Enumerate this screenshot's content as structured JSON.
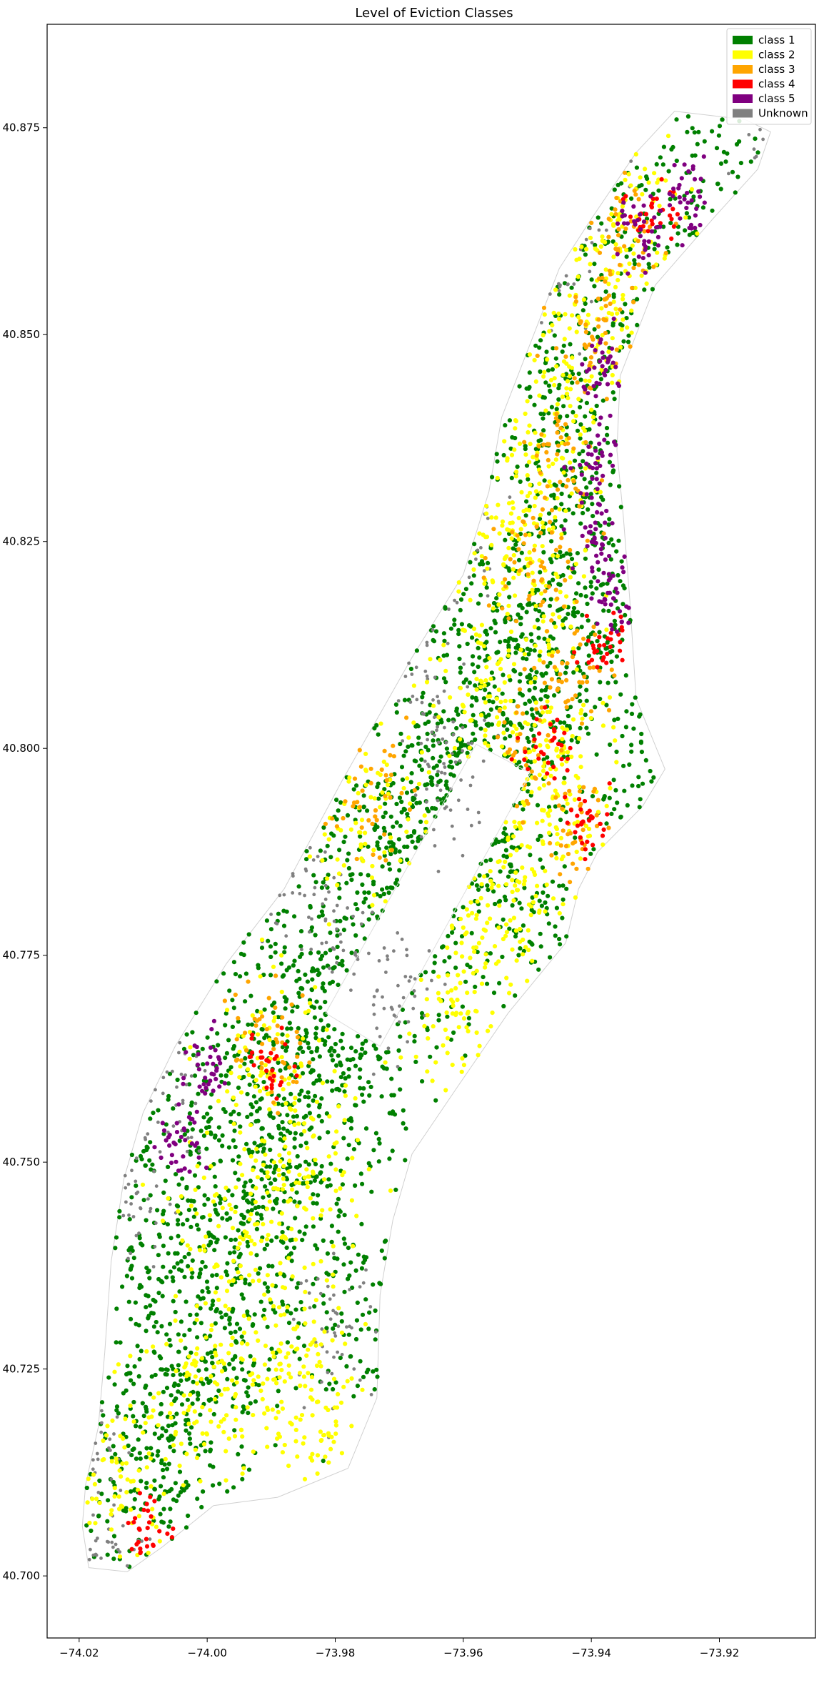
{
  "chart_data": {
    "type": "scatter",
    "title": "Level of Eviction Classes",
    "xlabel": "",
    "ylabel": "",
    "xlim": [
      -74.025,
      -73.905
    ],
    "ylim": [
      40.6925,
      40.8875
    ],
    "x_ticks": [
      -74.02,
      -74.0,
      -73.98,
      -73.96,
      -73.94,
      -73.92
    ],
    "x_tick_labels": [
      "−74.02",
      "−74.00",
      "−73.98",
      "−73.96",
      "−73.94",
      "−73.92"
    ],
    "y_ticks": [
      40.7,
      40.725,
      40.75,
      40.775,
      40.8,
      40.825,
      40.85,
      40.875
    ],
    "y_tick_labels": [
      "40.700",
      "40.725",
      "40.750",
      "40.775",
      "40.800",
      "40.825",
      "40.850",
      "40.875"
    ],
    "grid": false,
    "legend_position": "top-right",
    "legend": [
      {
        "label": "class 1",
        "color": "#008000"
      },
      {
        "label": "class 2",
        "color": "#ffff00"
      },
      {
        "label": "class 3",
        "color": "#ffa500"
      },
      {
        "label": "class 4",
        "color": "#ff0000"
      },
      {
        "label": "class 5",
        "color": "#800080"
      },
      {
        "label": "Unknown",
        "color": "#808080"
      }
    ],
    "series": [
      {
        "name": "class 1",
        "color": "#008000"
      },
      {
        "name": "class 2",
        "color": "#ffff00"
      },
      {
        "name": "class 3",
        "color": "#ffa500"
      },
      {
        "name": "class 4",
        "color": "#ff0000"
      },
      {
        "name": "class 5",
        "color": "#800080"
      },
      {
        "name": "Unknown",
        "color": "#808080"
      }
    ],
    "boundary_outline": {
      "color": "#d0d0d0",
      "points": [
        [
          -74.0185,
          40.701
        ],
        [
          -74.0125,
          40.7005
        ],
        [
          -74.007,
          40.7035
        ],
        [
          -73.999,
          40.7085
        ],
        [
          -73.989,
          40.7095
        ],
        [
          -73.978,
          40.713
        ],
        [
          -73.9735,
          40.7215
        ],
        [
          -73.973,
          40.734
        ],
        [
          -73.971,
          40.743
        ],
        [
          -73.968,
          40.751
        ],
        [
          -73.961,
          40.759
        ],
        [
          -73.953,
          40.768
        ],
        [
          -73.944,
          40.7765
        ],
        [
          -73.942,
          40.783
        ],
        [
          -73.939,
          40.7875
        ],
        [
          -73.932,
          40.793
        ],
        [
          -73.9285,
          40.7975
        ],
        [
          -73.933,
          40.806
        ],
        [
          -73.934,
          40.818
        ],
        [
          -73.935,
          40.828
        ],
        [
          -73.936,
          40.836
        ],
        [
          -73.9355,
          40.845
        ],
        [
          -73.93,
          40.856
        ],
        [
          -73.921,
          40.864
        ],
        [
          -73.914,
          40.87
        ],
        [
          -73.912,
          40.8745
        ],
        [
          -73.916,
          40.876
        ],
        [
          -73.927,
          40.877
        ],
        [
          -73.933,
          40.872
        ],
        [
          -73.94,
          40.864
        ],
        [
          -73.945,
          40.858
        ],
        [
          -73.949,
          40.85
        ],
        [
          -73.954,
          40.84
        ],
        [
          -73.956,
          40.831
        ],
        [
          -73.96,
          40.821
        ],
        [
          -73.968,
          40.811
        ],
        [
          -73.979,
          40.796
        ],
        [
          -73.988,
          40.783
        ],
        [
          -73.997,
          40.774
        ],
        [
          -74.005,
          40.764
        ],
        [
          -74.01,
          40.756
        ],
        [
          -74.013,
          40.748
        ],
        [
          -74.015,
          40.738
        ],
        [
          -74.016,
          40.727
        ],
        [
          -74.017,
          40.718
        ],
        [
          -74.019,
          40.711
        ],
        [
          -74.0195,
          40.706
        ],
        [
          -74.0185,
          40.701
        ]
      ]
    },
    "central_park": [
      [
        -73.9815,
        40.768
      ],
      [
        -73.973,
        40.764
      ],
      [
        -73.958,
        40.8005
      ],
      [
        -73.9495,
        40.797
      ]
    ],
    "regions": [
      {
        "series": "class 1",
        "centers": [
          [
            -74.012,
            40.712
          ],
          [
            -74.006,
            40.718
          ],
          [
            -74.0,
            40.725
          ],
          [
            -73.995,
            40.735
          ],
          [
            -73.99,
            40.745
          ],
          [
            -73.985,
            40.755
          ],
          [
            -73.978,
            40.765
          ],
          [
            -73.972,
            40.775
          ],
          [
            -73.965,
            40.785
          ],
          [
            -73.958,
            40.795
          ],
          [
            -73.95,
            40.805
          ],
          [
            -73.945,
            40.815
          ],
          [
            -73.94,
            40.82
          ],
          [
            -73.945,
            40.835
          ],
          [
            -73.942,
            40.845
          ],
          [
            -73.935,
            40.86
          ],
          [
            -73.925,
            40.87
          ],
          [
            -73.977,
            40.731
          ],
          [
            -74.01,
            40.74
          ],
          [
            -74.003,
            40.75
          ],
          [
            -73.993,
            40.76
          ],
          [
            -73.985,
            40.77
          ],
          [
            -73.975,
            40.785
          ],
          [
            -73.963,
            40.802
          ],
          [
            -73.955,
            40.812
          ],
          [
            -73.96,
            40.79
          ],
          [
            -73.948,
            40.777
          ],
          [
            -73.93,
            40.798
          ]
        ],
        "spread": [
          0.006,
          0.008
        ]
      },
      {
        "series": "class 2",
        "centers": [
          [
            -74.0,
            40.722
          ],
          [
            -73.99,
            40.727
          ],
          [
            -73.982,
            40.72
          ],
          [
            -73.995,
            40.742
          ],
          [
            -73.985,
            40.747
          ],
          [
            -73.99,
            40.76
          ],
          [
            -73.955,
            40.78
          ],
          [
            -73.948,
            40.79
          ],
          [
            -73.96,
            40.77
          ],
          [
            -73.975,
            40.793
          ],
          [
            -73.95,
            40.82
          ],
          [
            -73.952,
            40.83
          ],
          [
            -73.945,
            40.843
          ],
          [
            -73.94,
            40.855
          ],
          [
            -73.935,
            40.866
          ],
          [
            -73.955,
            40.808
          ],
          [
            -73.945,
            40.798
          ],
          [
            -74.015,
            40.712
          ]
        ],
        "spread": [
          0.005,
          0.006
        ]
      },
      {
        "series": "class 3",
        "centers": [
          [
            -73.95,
            40.8
          ],
          [
            -73.945,
            40.835
          ],
          [
            -73.94,
            40.849
          ],
          [
            -73.935,
            40.862
          ],
          [
            -73.943,
            40.788
          ],
          [
            -73.99,
            40.765
          ],
          [
            -73.975,
            40.795
          ],
          [
            -73.95,
            40.822
          ],
          [
            -73.942,
            40.81
          ]
        ],
        "spread": [
          0.003,
          0.004
        ]
      },
      {
        "series": "class 4",
        "centers": [
          [
            -73.941,
            40.791
          ],
          [
            -73.938,
            40.813
          ],
          [
            -73.947,
            40.8
          ],
          [
            -73.93,
            40.865
          ],
          [
            -73.99,
            40.762
          ],
          [
            -74.009,
            40.7055
          ]
        ],
        "spread": [
          0.002,
          0.002
        ]
      },
      {
        "series": "class 5",
        "centers": [
          [
            -73.939,
            40.826
          ],
          [
            -73.937,
            40.818
          ],
          [
            -73.938,
            40.846
          ],
          [
            -73.932,
            40.862
          ],
          [
            -73.925,
            40.866
          ],
          [
            -74.0,
            40.761
          ],
          [
            -74.004,
            40.752
          ],
          [
            -73.94,
            40.834
          ]
        ],
        "spread": [
          0.0018,
          0.0025
        ]
      },
      {
        "series": "Unknown",
        "centers": [
          [
            -73.98,
            40.78
          ],
          [
            -73.97,
            40.77
          ],
          [
            -73.962,
            40.796
          ],
          [
            -73.965,
            40.807
          ],
          [
            -74.015,
            40.703
          ],
          [
            -74.018,
            40.716
          ],
          [
            -74.012,
            40.745
          ],
          [
            -74.006,
            40.76
          ],
          [
            -73.99,
            40.785
          ],
          [
            -73.96,
            40.825
          ],
          [
            -73.94,
            40.872
          ],
          [
            -73.913,
            40.872
          ],
          [
            -73.945,
            40.858
          ],
          [
            -73.98,
            40.73
          ]
        ],
        "spread": [
          0.003,
          0.004
        ]
      }
    ]
  }
}
